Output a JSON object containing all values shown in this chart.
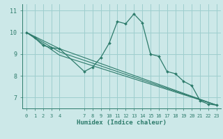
{
  "xlabel": "Humidex (Indice chaleur)",
  "background_color": "#cce8e8",
  "line_color": "#2d7b6b",
  "grid_color": "#9ecece",
  "xlim": [
    -0.5,
    23.5
  ],
  "ylim": [
    6.5,
    11.3
  ],
  "yticks": [
    7,
    8,
    9,
    10,
    11
  ],
  "xticks": [
    0,
    1,
    2,
    3,
    4,
    7,
    8,
    9,
    10,
    11,
    12,
    13,
    14,
    15,
    16,
    17,
    18,
    19,
    20,
    21,
    22,
    23
  ],
  "line1_x": [
    0,
    1,
    2,
    3,
    4,
    7,
    8,
    9,
    10,
    11,
    12,
    13,
    14,
    15,
    16,
    17,
    18,
    19,
    20,
    21,
    22,
    23
  ],
  "line1_y": [
    10.0,
    9.75,
    9.4,
    9.3,
    9.25,
    8.2,
    8.4,
    8.85,
    9.5,
    10.5,
    10.4,
    10.85,
    10.45,
    9.0,
    8.9,
    8.2,
    8.1,
    7.75,
    7.55,
    6.85,
    6.7,
    6.65
  ],
  "ref_lines": [
    {
      "x": [
        0,
        4,
        23
      ],
      "y": [
        10.0,
        9.25,
        6.65
      ]
    },
    {
      "x": [
        0,
        4,
        23
      ],
      "y": [
        10.0,
        9.1,
        6.65
      ]
    },
    {
      "x": [
        0,
        4,
        23
      ],
      "y": [
        10.0,
        8.95,
        6.65
      ]
    }
  ]
}
